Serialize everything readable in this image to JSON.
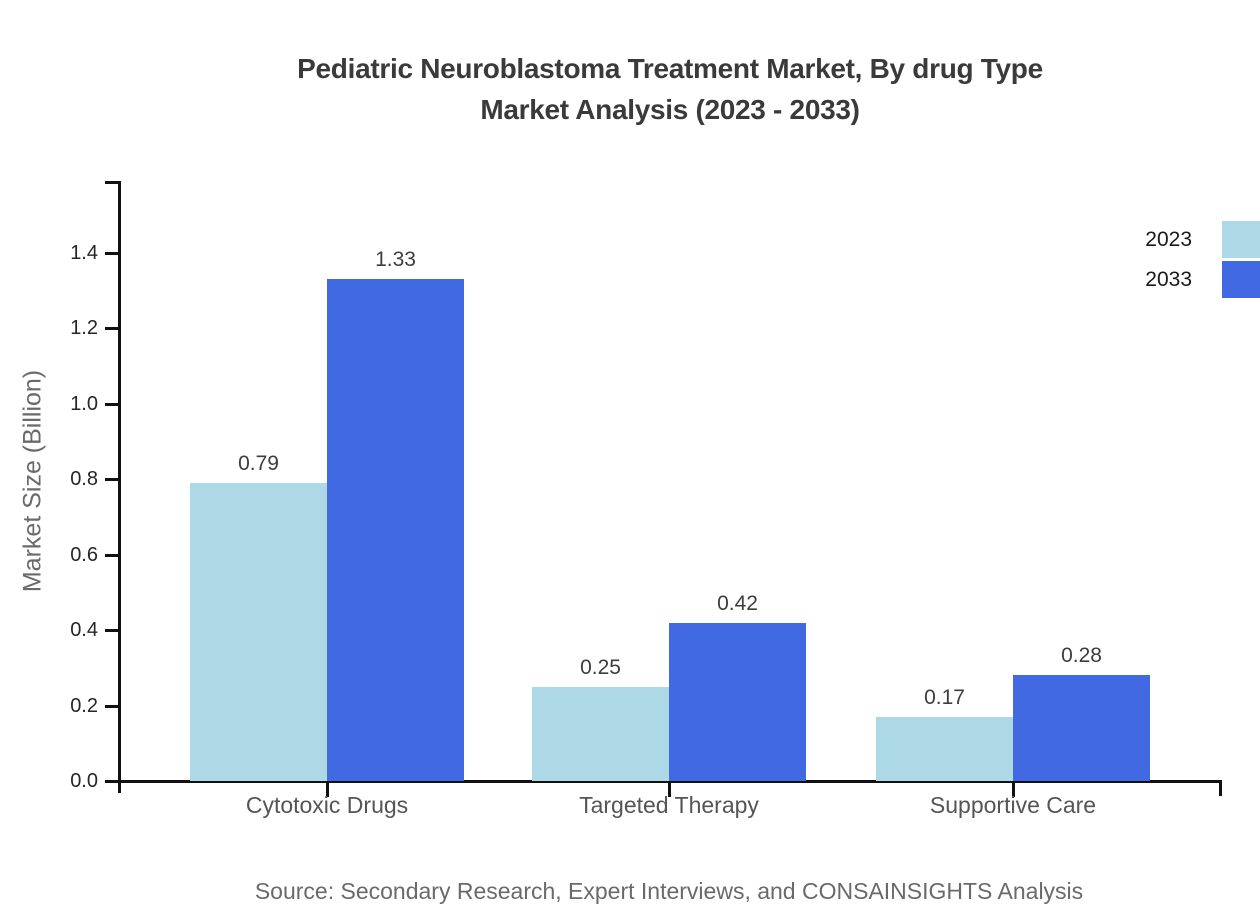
{
  "title": {
    "line1": "Pediatric Neuroblastoma Treatment Market, By drug Type",
    "line2": "Market Analysis (2023 - 2033)"
  },
  "source_text": "Source: Secondary Research, Expert Interviews, and CONSAINSIGHTS Analysis",
  "chart_data": {
    "type": "bar",
    "title": "Pediatric Neuroblastoma Treatment Market, By drug Type Market Analysis (2023 - 2033)",
    "categories": [
      "Cytotoxic Drugs",
      "Targeted Therapy",
      "Supportive Care"
    ],
    "series": [
      {
        "name": "2023",
        "color": "#ADD8E6",
        "values": [
          0.79,
          0.25,
          0.17
        ]
      },
      {
        "name": "2033",
        "color": "#4169E1",
        "values": [
          1.33,
          0.42,
          0.28
        ]
      }
    ],
    "xlabel": "",
    "ylabel": "Market Size (Billion)",
    "ylim": [
      0,
      1.59
    ],
    "yticks": [
      0.0,
      0.2,
      0.4,
      0.6,
      0.8,
      1.0,
      1.2,
      1.4
    ],
    "grid": false,
    "legend_position": "upper-right",
    "value_labels": true
  }
}
